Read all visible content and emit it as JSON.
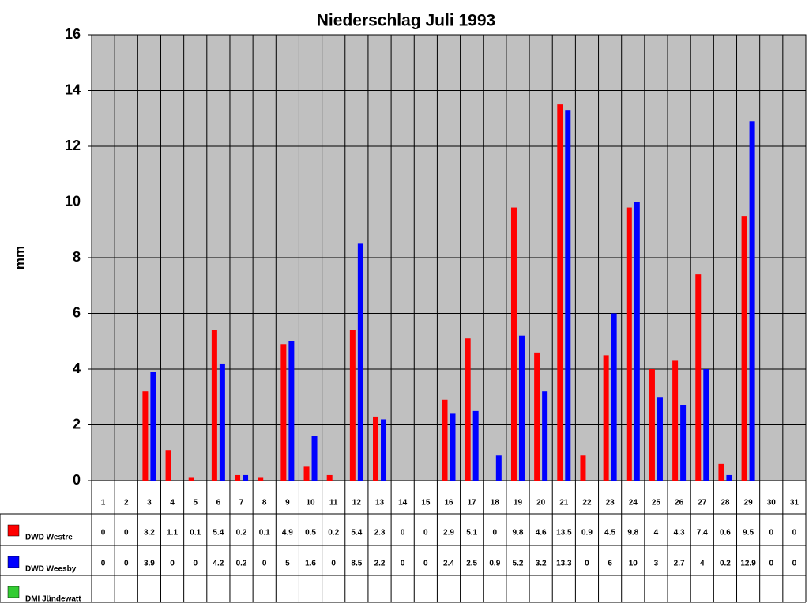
{
  "chart_data": {
    "type": "bar",
    "title": "Niederschlag Juli 1993",
    "ylabel": "mm",
    "categories": [
      "1",
      "2",
      "3",
      "4",
      "5",
      "6",
      "7",
      "8",
      "9",
      "10",
      "11",
      "12",
      "13",
      "14",
      "15",
      "16",
      "17",
      "18",
      "19",
      "20",
      "21",
      "22",
      "23",
      "24",
      "25",
      "26",
      "27",
      "28",
      "29",
      "30",
      "31"
    ],
    "series": [
      {
        "name": "DWD Westre",
        "color": "#ff0000",
        "values": [
          0,
          0,
          3.2,
          1.1,
          0.1,
          5.4,
          0.2,
          0.1,
          4.9,
          0.5,
          0.2,
          5.4,
          2.3,
          0,
          0,
          2.9,
          5.1,
          0,
          9.8,
          4.6,
          13.5,
          0.9,
          4.5,
          9.8,
          4,
          4.3,
          7.4,
          0.6,
          9.5,
          0,
          0
        ]
      },
      {
        "name": "DWD Weesby",
        "color": "#0000ff",
        "values": [
          0,
          0,
          3.9,
          0,
          0,
          4.2,
          0.2,
          0,
          5,
          1.6,
          0,
          8.5,
          2.2,
          0,
          0,
          2.4,
          2.5,
          0.9,
          5.2,
          3.2,
          13.3,
          0,
          6,
          10,
          3,
          2.7,
          4,
          0.2,
          12.9,
          0,
          0
        ]
      },
      {
        "name": "DMI Jündewatt",
        "color": "#33cc33",
        "values": [
          null,
          null,
          null,
          null,
          null,
          null,
          null,
          null,
          null,
          null,
          null,
          null,
          null,
          null,
          null,
          null,
          null,
          null,
          null,
          null,
          null,
          null,
          null,
          null,
          null,
          null,
          null,
          null,
          null,
          null,
          null
        ]
      }
    ],
    "ylim": [
      0,
      16
    ],
    "yticks": [
      0,
      2,
      4,
      6,
      8,
      10,
      12,
      14,
      16
    ],
    "grid": true,
    "plot_background": "#c0c0c0"
  }
}
